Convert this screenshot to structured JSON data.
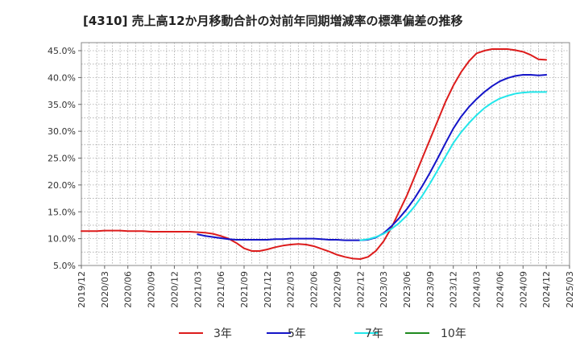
{
  "chart_data": {
    "type": "line",
    "title": "[4310]  売上高12か月移動合計の対前年同期増減率の標準偏差の推移",
    "xlabel": "",
    "ylabel": "",
    "x_ticks": [
      "2019/12",
      "2020/03",
      "2020/06",
      "2020/09",
      "2020/12",
      "2021/03",
      "2021/06",
      "2021/09",
      "2021/12",
      "2022/03",
      "2022/06",
      "2022/09",
      "2022/12",
      "2023/03",
      "2023/06",
      "2023/09",
      "2023/12",
      "2024/03",
      "2024/06",
      "2024/09",
      "2024/12",
      "2025/03"
    ],
    "y_ticks": [
      "5.0%",
      "10.0%",
      "15.0%",
      "20.0%",
      "25.0%",
      "30.0%",
      "35.0%",
      "40.0%",
      "45.0%"
    ],
    "ylim": [
      5.0,
      46.5
    ],
    "xlim": [
      "2019/12",
      "2025/03"
    ],
    "grid": true,
    "legend_position": "bottom",
    "series": [
      {
        "name": "3年",
        "color": "#dd1c1c",
        "x": [
          "2019/12",
          "2020/01",
          "2020/02",
          "2020/03",
          "2020/04",
          "2020/05",
          "2020/06",
          "2020/07",
          "2020/08",
          "2020/09",
          "2020/10",
          "2020/11",
          "2020/12",
          "2021/01",
          "2021/02",
          "2021/03",
          "2021/04",
          "2021/05",
          "2021/06",
          "2021/07",
          "2021/08",
          "2021/09",
          "2021/10",
          "2021/11",
          "2021/12",
          "2022/01",
          "2022/02",
          "2022/03",
          "2022/04",
          "2022/05",
          "2022/06",
          "2022/07",
          "2022/08",
          "2022/09",
          "2022/10",
          "2022/11",
          "2022/12",
          "2023/01",
          "2023/02",
          "2023/03",
          "2023/04",
          "2023/05",
          "2023/06",
          "2023/07",
          "2023/08",
          "2023/09",
          "2023/10",
          "2023/11",
          "2023/12",
          "2024/01",
          "2024/02",
          "2024/03",
          "2024/04",
          "2024/05",
          "2024/06",
          "2024/07",
          "2024/08",
          "2024/09",
          "2024/10",
          "2024/11",
          "2024/12"
        ],
        "values": [
          11.4,
          11.4,
          11.4,
          11.5,
          11.5,
          11.5,
          11.4,
          11.4,
          11.4,
          11.3,
          11.3,
          11.3,
          11.3,
          11.3,
          11.3,
          11.2,
          11.1,
          10.9,
          10.5,
          10.0,
          9.2,
          8.2,
          7.7,
          7.7,
          8.0,
          8.4,
          8.7,
          8.9,
          9.0,
          8.9,
          8.6,
          8.1,
          7.6,
          7.0,
          6.6,
          6.3,
          6.2,
          6.6,
          7.7,
          9.5,
          12.0,
          15.0,
          18.0,
          21.5,
          25.0,
          28.5,
          32.0,
          35.5,
          38.5,
          41.0,
          43.0,
          44.5,
          45.0,
          45.3,
          45.3,
          45.3,
          45.1,
          44.8,
          44.2,
          43.4,
          43.3
        ]
      },
      {
        "name": "5年",
        "color": "#1414c8",
        "x": [
          "2021/03",
          "2021/04",
          "2021/05",
          "2021/06",
          "2021/07",
          "2021/08",
          "2021/09",
          "2021/10",
          "2021/11",
          "2021/12",
          "2022/01",
          "2022/02",
          "2022/03",
          "2022/04",
          "2022/05",
          "2022/06",
          "2022/07",
          "2022/08",
          "2022/09",
          "2022/10",
          "2022/11",
          "2022/12",
          "2023/01",
          "2023/02",
          "2023/03",
          "2023/04",
          "2023/05",
          "2023/06",
          "2023/07",
          "2023/08",
          "2023/09",
          "2023/10",
          "2023/11",
          "2023/12",
          "2024/01",
          "2024/02",
          "2024/03",
          "2024/04",
          "2024/05",
          "2024/06",
          "2024/07",
          "2024/08",
          "2024/09",
          "2024/10",
          "2024/11",
          "2024/12"
        ],
        "values": [
          10.8,
          10.5,
          10.3,
          10.1,
          9.9,
          9.8,
          9.8,
          9.8,
          9.8,
          9.8,
          9.9,
          9.9,
          10.0,
          10.0,
          10.0,
          10.0,
          9.9,
          9.8,
          9.8,
          9.7,
          9.7,
          9.7,
          9.8,
          10.2,
          11.0,
          12.3,
          13.8,
          15.5,
          17.5,
          19.8,
          22.3,
          25.0,
          27.8,
          30.5,
          32.7,
          34.5,
          36.0,
          37.3,
          38.4,
          39.3,
          39.9,
          40.3,
          40.5,
          40.5,
          40.4,
          40.5
        ]
      },
      {
        "name": "7年",
        "color": "#22e6ea",
        "x": [
          "2022/12",
          "2023/01",
          "2023/02",
          "2023/03",
          "2023/04",
          "2023/05",
          "2023/06",
          "2023/07",
          "2023/08",
          "2023/09",
          "2023/10",
          "2023/11",
          "2023/12",
          "2024/01",
          "2024/02",
          "2024/03",
          "2024/04",
          "2024/05",
          "2024/06",
          "2024/07",
          "2024/08",
          "2024/09",
          "2024/10",
          "2024/11",
          "2024/12"
        ],
        "values": [
          9.7,
          9.9,
          10.3,
          10.9,
          11.8,
          12.9,
          14.3,
          16.0,
          18.0,
          20.3,
          22.8,
          25.3,
          27.8,
          29.8,
          31.5,
          33.0,
          34.3,
          35.3,
          36.1,
          36.6,
          37.0,
          37.2,
          37.3,
          37.3,
          37.3
        ]
      },
      {
        "name": "10年",
        "color": "#1f8a1f",
        "x": [],
        "values": []
      }
    ]
  }
}
